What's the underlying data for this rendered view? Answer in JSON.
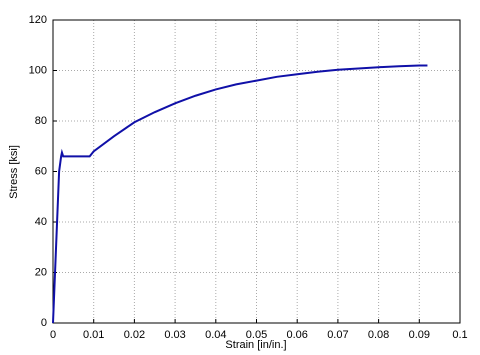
{
  "chart_data": {
    "type": "line",
    "xlabel": "Strain [in/in.]",
    "ylabel": "Stress [ksi]",
    "x": [
      0,
      0.0015,
      0.002,
      0.0022,
      0.0025,
      0.009,
      0.0095,
      0.01,
      0.015,
      0.02,
      0.025,
      0.03,
      0.035,
      0.04,
      0.045,
      0.05,
      0.055,
      0.06,
      0.065,
      0.07,
      0.075,
      0.08,
      0.085,
      0.09,
      0.092
    ],
    "series": [
      {
        "color": "#1010a8",
        "values": [
          0,
          60,
          66,
          67.5,
          66,
          66,
          67,
          68,
          74,
          79.5,
          83.5,
          87,
          90,
          92.5,
          94.5,
          96,
          97.5,
          98.5,
          99.5,
          100.3,
          100.8,
          101.3,
          101.7,
          102,
          102
        ]
      }
    ],
    "xlim": [
      0,
      0.1
    ],
    "xticks": [
      0,
      0.01,
      0.02,
      0.03,
      0.04,
      0.05,
      0.06,
      0.07,
      0.08,
      0.09,
      0.1
    ],
    "ylim": [
      0,
      120
    ],
    "yticks": [
      0,
      20,
      40,
      60,
      80,
      100,
      120
    ],
    "grid": true
  }
}
